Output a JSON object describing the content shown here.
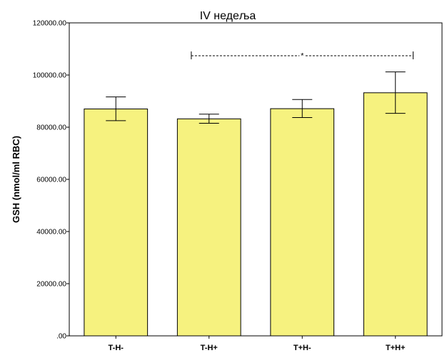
{
  "chart_data": {
    "type": "bar",
    "title": "IV недеља",
    "ylabel": "GSH (nmol/ml RBC)",
    "xlabel": "",
    "categories": [
      "T-H-",
      "T-H+",
      "T+H-",
      "T+H+"
    ],
    "values": [
      87000,
      83200,
      87100,
      93200
    ],
    "error_low": [
      82500,
      81500,
      83700,
      85300
    ],
    "error_high": [
      91600,
      85000,
      90600,
      101200
    ],
    "ylim": [
      0,
      120000
    ],
    "yticks": [
      ".00",
      "20000.00",
      "40000.00",
      "60000.00",
      "80000.00",
      "100000.00",
      "120000.00"
    ],
    "ytick_values": [
      0,
      20000,
      40000,
      60000,
      80000,
      100000,
      120000
    ],
    "significance": {
      "from": 1,
      "to": 3,
      "label": "*"
    },
    "bar_color": "#f6f27f",
    "grid": false
  }
}
